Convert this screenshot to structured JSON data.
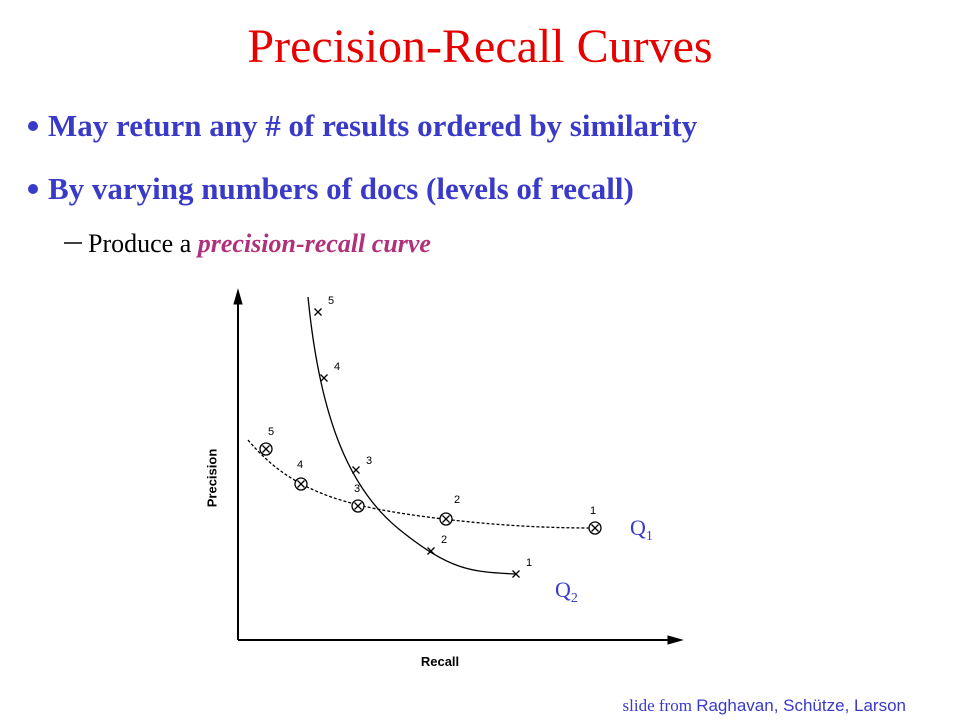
{
  "title": "Precision-Recall Curves",
  "bullets": [
    "May return any # of results ordered by similarity",
    "By varying numbers of docs (levels of recall)"
  ],
  "sub_bullet": {
    "prefix": "Produce a",
    "emphasis": "precision-recall curve"
  },
  "diagram": {
    "y_axis_label": "Precision",
    "x_axis_label": "Recall",
    "curves": [
      {
        "name": "Q",
        "subscript": "1",
        "point_labels": [
          "1",
          "2",
          "3",
          "4",
          "5"
        ]
      },
      {
        "name": "Q",
        "subscript": "2",
        "point_labels": [
          "1",
          "2",
          "3",
          "4",
          "5"
        ]
      }
    ]
  },
  "credit": {
    "prefix": "slide from",
    "names": "Raghavan,  Schütze, Larson"
  }
}
